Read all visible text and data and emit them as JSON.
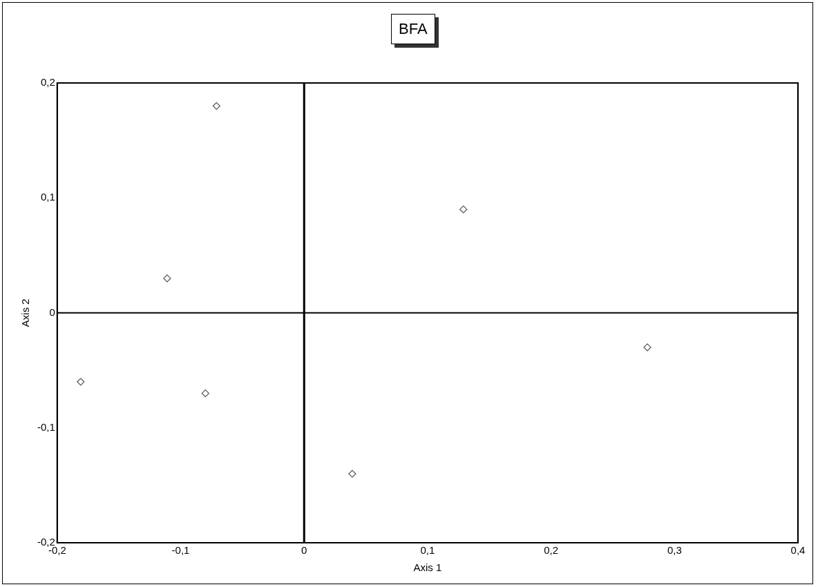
{
  "chart_data": {
    "type": "scatter",
    "title": "BFA",
    "xlabel": "Axis 1",
    "ylabel": "Axis 2",
    "series": [
      {
        "color": "#555555",
        "x": [
          -0.071,
          -0.111,
          0.129,
          -0.181,
          -0.08,
          0.278,
          0.039
        ],
        "values": [
          0.18,
          0.03,
          0.09,
          -0.06,
          -0.07,
          -0.03,
          -0.14
        ]
      }
    ],
    "xlim": [
      -0.2,
      0.4
    ],
    "ylim": [
      -0.2,
      0.2
    ],
    "xticks": [
      {
        "value": -0.2,
        "label": "-0,2"
      },
      {
        "value": -0.1,
        "label": "-0,1"
      },
      0,
      {
        "value": 0.1,
        "label": "0,1"
      },
      {
        "value": 0.2,
        "label": "0,2"
      },
      {
        "value": 0.3,
        "label": "0,3"
      },
      {
        "value": 0.4,
        "label": "0,4"
      }
    ],
    "yticks": [
      {
        "value": -0.2,
        "label": "-0,2"
      },
      {
        "value": -0.1,
        "label": "-0,1"
      },
      0,
      {
        "value": 0.1,
        "label": "0,1"
      },
      {
        "value": 0.2,
        "label": "0,2"
      }
    ],
    "ref_lines": [
      {
        "axis": "x",
        "value": 0,
        "color": "#000000"
      },
      {
        "axis": "y",
        "value": 0,
        "color": "#000000"
      }
    ],
    "grid": false,
    "legend": false,
    "marker": "diamond"
  }
}
